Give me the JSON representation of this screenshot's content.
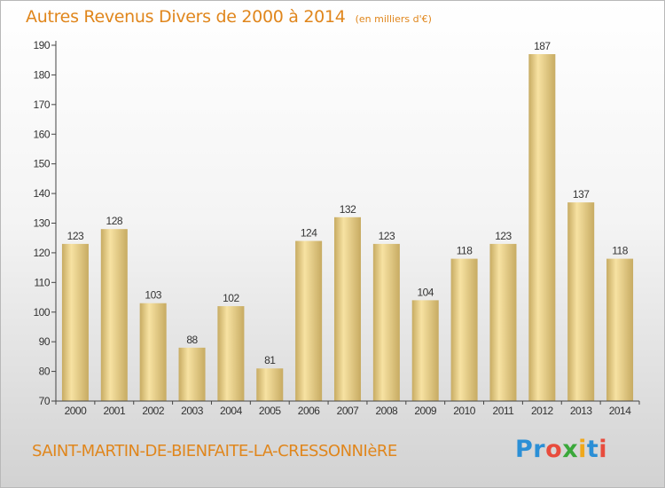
{
  "title": "Autres Revenus Divers de 2000 à 2014",
  "subtitle": "(en milliers d'€)",
  "place": "SAINT-MARTIN-DE-BIENFAITE-LA-CRESSONNIèRE",
  "logo": {
    "letters": [
      "P",
      "r",
      "o",
      "x",
      "i",
      "t",
      "i"
    ],
    "colors": [
      "#2b8fd6",
      "#2b8fd6",
      "#e84c3d",
      "#3aa83a",
      "#f0a81c",
      "#2b8fd6",
      "#e84c3d"
    ]
  },
  "colors": {
    "bar_light": "#f7e2a2",
    "bar_dark": "#c7ab62",
    "text": "#e0861c"
  },
  "chart_data": {
    "type": "bar",
    "categories": [
      "2000",
      "2001",
      "2002",
      "2003",
      "2004",
      "2005",
      "2006",
      "2007",
      "2008",
      "2009",
      "2010",
      "2011",
      "2012",
      "2013",
      "2014"
    ],
    "values": [
      123,
      128,
      103,
      88,
      102,
      81,
      124,
      132,
      123,
      104,
      118,
      123,
      187,
      137,
      118
    ],
    "title": "Autres Revenus Divers de 2000 à 2014",
    "subtitle": "(en milliers d'€)",
    "ylim": [
      70,
      190
    ],
    "yticks": [
      70,
      80,
      90,
      100,
      110,
      120,
      130,
      140,
      150,
      160,
      170,
      180,
      190
    ],
    "data_labels": true,
    "grid": false
  }
}
